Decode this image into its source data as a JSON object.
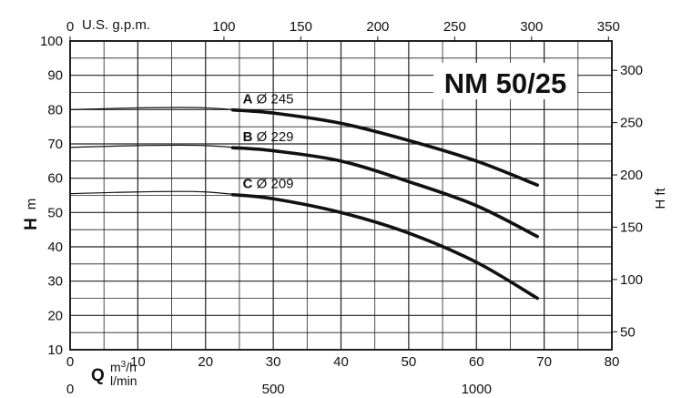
{
  "chart_data": {
    "type": "line",
    "title": "NM 50/25",
    "grid": true,
    "x_axes": {
      "flow_m3h": {
        "range": [
          0,
          80
        ],
        "ticks": [
          0,
          10,
          20,
          30,
          40,
          50,
          60,
          70,
          80
        ]
      },
      "flow_usgpm": {
        "label": "U.S. g.p.m.",
        "range": [
          0,
          352.2
        ],
        "ticks": [
          0,
          100,
          150,
          200,
          250,
          300,
          350
        ]
      },
      "flow_lmin": {
        "label": "l/min",
        "ticks": [
          0,
          500,
          1000
        ]
      }
    },
    "x_label": {
      "symbol": "Q",
      "unit_m3h_base": "m",
      "unit_m3h_sup": "3",
      "unit_m3h_end": "/h",
      "unit_lmin": "l/min"
    },
    "y_axes": {
      "head_m": {
        "symbol": "H",
        "unit": "m",
        "range": [
          10,
          100
        ],
        "ticks": [
          10,
          20,
          30,
          40,
          50,
          60,
          70,
          80,
          90,
          100
        ]
      },
      "head_ft": {
        "label": "H ft",
        "range": [
          32.8,
          328.1
        ],
        "ticks": [
          50,
          100,
          150,
          200,
          250,
          300
        ]
      }
    },
    "series": [
      {
        "letter": "A",
        "name": "Ø 245",
        "x": [
          0,
          10,
          20,
          30,
          40,
          50,
          60,
          69
        ],
        "y": [
          80,
          80.5,
          80.5,
          79,
          76,
          71,
          65,
          58
        ]
      },
      {
        "letter": "B",
        "name": "Ø 229",
        "x": [
          0,
          10,
          20,
          30,
          40,
          50,
          60,
          69
        ],
        "y": [
          69,
          69.5,
          69.5,
          68,
          65,
          59,
          52,
          43
        ]
      },
      {
        "letter": "C",
        "name": "Ø 209",
        "x": [
          0,
          10,
          20,
          30,
          40,
          50,
          60,
          69
        ],
        "y": [
          55.5,
          56,
          56,
          54,
          50,
          44,
          35.5,
          25
        ]
      }
    ]
  },
  "colors": {
    "line": "#111111",
    "grid": "#222222",
    "background": "#ffffff"
  }
}
